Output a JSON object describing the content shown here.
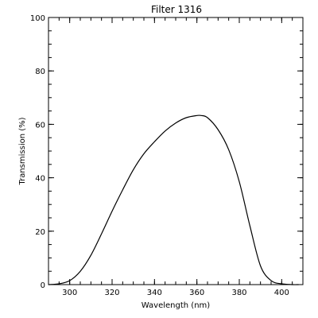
{
  "chart_data": {
    "type": "line",
    "title": "Filter 1316",
    "xlabel": "Wavelength (nm)",
    "ylabel": "Transmission (%)",
    "xlim": [
      290,
      410
    ],
    "ylim": [
      0,
      100
    ],
    "x_ticks": [
      300,
      320,
      340,
      360,
      380,
      400
    ],
    "y_ticks": [
      0,
      20,
      40,
      60,
      80,
      100
    ],
    "x_minor_step": 5,
    "y_minor_step": 5,
    "grid": false,
    "legend": "none",
    "line_color": "#000000",
    "series": [
      {
        "x": [
          290,
          295,
          300,
          305,
          310,
          315,
          320,
          325,
          330,
          335,
          340,
          345,
          350,
          355,
          360,
          362,
          365,
          370,
          375,
          380,
          385,
          390,
          395,
          400,
          405,
          408
        ],
        "values": [
          0,
          0.3,
          1.5,
          5,
          11,
          19,
          27.5,
          35.5,
          43,
          49,
          53.5,
          57.5,
          60.5,
          62.5,
          63.3,
          63.3,
          62.5,
          58,
          50.5,
          38.5,
          22,
          7,
          1.5,
          0.3,
          0,
          0
        ]
      }
    ]
  }
}
